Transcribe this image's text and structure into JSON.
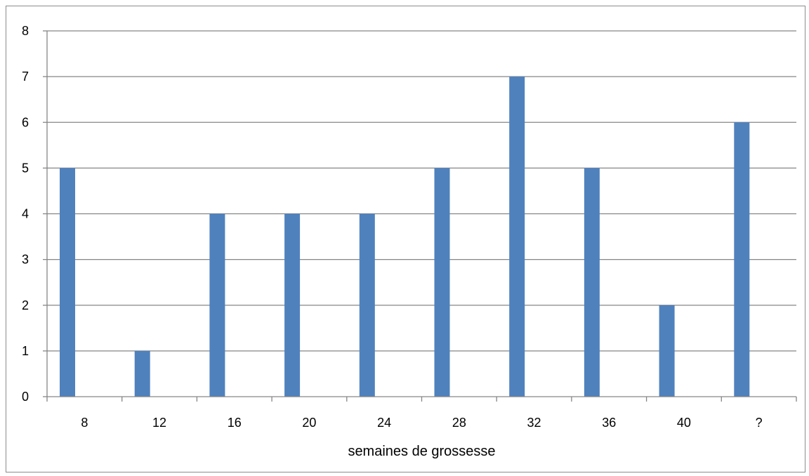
{
  "chart_data": {
    "type": "bar",
    "categories": [
      "8",
      "12",
      "16",
      "20",
      "24",
      "28",
      "32",
      "36",
      "40",
      "?"
    ],
    "values": [
      5,
      1,
      4,
      4,
      4,
      5,
      7,
      5,
      2,
      6
    ],
    "title": "",
    "xlabel": "semaines de grossesse",
    "ylabel": "",
    "ylim": [
      0,
      8
    ],
    "yticks": [
      "0",
      "1",
      "2",
      "3",
      "4",
      "5",
      "6",
      "7",
      "8"
    ],
    "grid": true,
    "legend": "none",
    "bar_color": "#4F81BD",
    "grid_color": "#868686"
  }
}
